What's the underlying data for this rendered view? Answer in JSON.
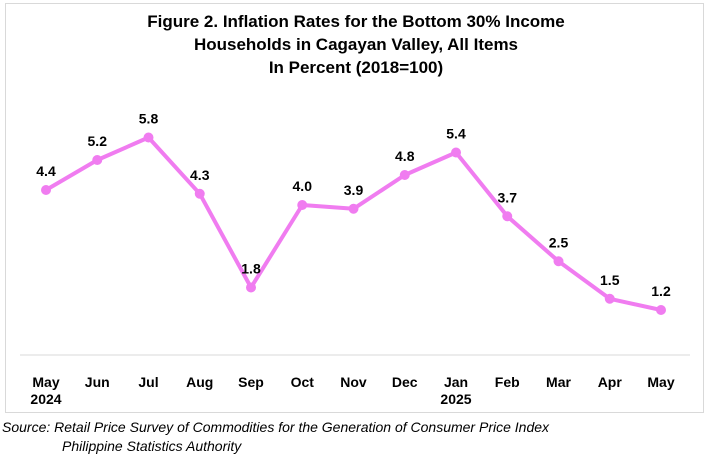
{
  "chart_data": {
    "type": "line",
    "title_lines": [
      "Figure 2. Inflation Rates for the Bottom 30% Income",
      "Households in Cagayan Valley, All Items",
      "In Percent (2018=100)"
    ],
    "categories": [
      [
        "May",
        "2024"
      ],
      [
        "Jun"
      ],
      [
        "Jul"
      ],
      [
        "Aug"
      ],
      [
        "Sep"
      ],
      [
        "Oct"
      ],
      [
        "Nov"
      ],
      [
        "Dec"
      ],
      [
        "Jan",
        "2025"
      ],
      [
        "Feb"
      ],
      [
        "Mar"
      ],
      [
        "Apr"
      ],
      [
        "May"
      ]
    ],
    "series": [
      {
        "values": [
          4.4,
          5.2,
          5.8,
          4.3,
          1.8,
          4.0,
          3.9,
          4.8,
          5.4,
          3.7,
          2.5,
          1.5,
          1.2
        ]
      }
    ],
    "data_labels": [
      "4.4",
      "5.2",
      "5.8",
      "4.3",
      "1.8",
      "4.0",
      "3.9",
      "4.8",
      "5.4",
      "3.7",
      "2.5",
      "1.5",
      "1.2"
    ],
    "ylim": [
      0,
      7
    ],
    "grid": false,
    "legend": "none",
    "line_color": "#f07cf0",
    "axis_color": "#d9d9d9"
  },
  "source": {
    "line1": "Source: Retail Price Survey of Commodities for the Generation of Consumer Price Index",
    "line2": "Philippine Statistics Authority"
  }
}
